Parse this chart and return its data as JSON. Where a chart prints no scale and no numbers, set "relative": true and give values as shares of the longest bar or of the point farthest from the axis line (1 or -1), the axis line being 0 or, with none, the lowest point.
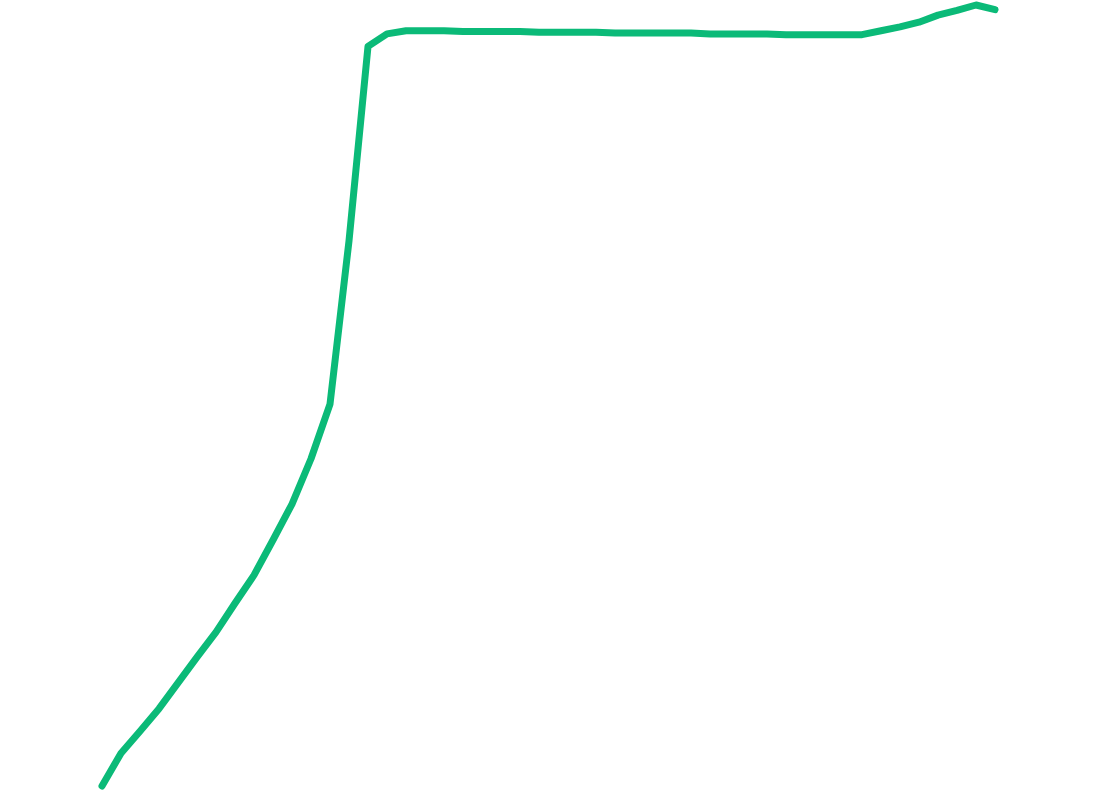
{
  "chart_data": {
    "type": "line",
    "relative": true,
    "color": "#0bba78",
    "categories": [
      null,
      null,
      null,
      null,
      null,
      null,
      null,
      null,
      null,
      null,
      null,
      null,
      null,
      null,
      null,
      null,
      null,
      null,
      null,
      null,
      null,
      null,
      null,
      null,
      null,
      null,
      null,
      null,
      null,
      null,
      null,
      null,
      null,
      null,
      null,
      null,
      null,
      null,
      null,
      null,
      null,
      null,
      null,
      null,
      null,
      null,
      null,
      null
    ],
    "values": [
      0,
      0.042,
      0.07,
      0.099,
      0.132,
      0.165,
      0.197,
      0.234,
      0.27,
      0.315,
      0.361,
      0.419,
      0.489,
      0.698,
      0.947,
      0.963,
      0.967,
      0.967,
      0.967,
      0.966,
      0.966,
      0.966,
      0.966,
      0.965,
      0.965,
      0.965,
      0.965,
      0.964,
      0.964,
      0.964,
      0.964,
      0.964,
      0.963,
      0.963,
      0.963,
      0.963,
      0.962,
      0.962,
      0.962,
      0.962,
      0.962,
      0.967,
      0.972,
      0.978,
      0.987,
      0.993,
      1,
      0.994
    ]
  }
}
